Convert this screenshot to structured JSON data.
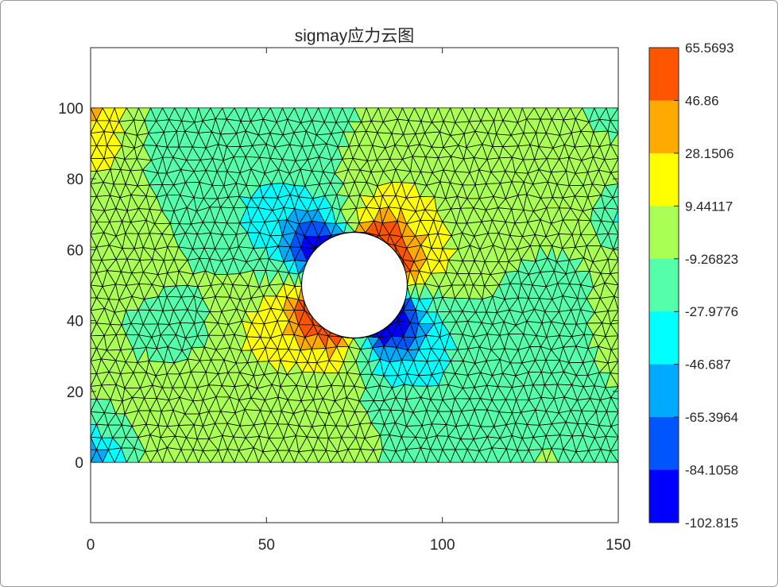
{
  "chart_data": {
    "type": "heatmap",
    "title": "sigmay应力云图",
    "xlabel": "",
    "ylabel": "",
    "xlim": [
      0,
      150
    ],
    "ylim": [
      -17,
      117
    ],
    "x_ticks": [
      "0",
      "50",
      "100",
      "150"
    ],
    "y_ticks": [
      "0",
      "20",
      "40",
      "60",
      "80",
      "100"
    ],
    "x_tick_values": [
      0,
      50,
      100,
      150
    ],
    "y_tick_values": [
      0,
      20,
      40,
      60,
      80,
      100
    ],
    "domain": {
      "x": [
        0,
        150
      ],
      "y": [
        0,
        100
      ]
    },
    "hole": {
      "cx": 75,
      "cy": 50,
      "r": 15
    },
    "grid": false,
    "mesh": "triangular",
    "colorbar": {
      "position": "right",
      "range": [
        -102.815,
        65.5693
      ],
      "levels": 9,
      "labels": [
        "65.5693",
        "46.86",
        "28.1506",
        "9.44117",
        "-9.26823",
        "-27.9776",
        "-46.687",
        "-65.3964",
        "-84.1058",
        "-102.815"
      ],
      "colors": [
        "#ff5500",
        "#ffaa00",
        "#ffff00",
        "#aaff55",
        "#55ffaa",
        "#00ffff",
        "#00aaff",
        "#0055ff",
        "#0000ff"
      ]
    }
  }
}
